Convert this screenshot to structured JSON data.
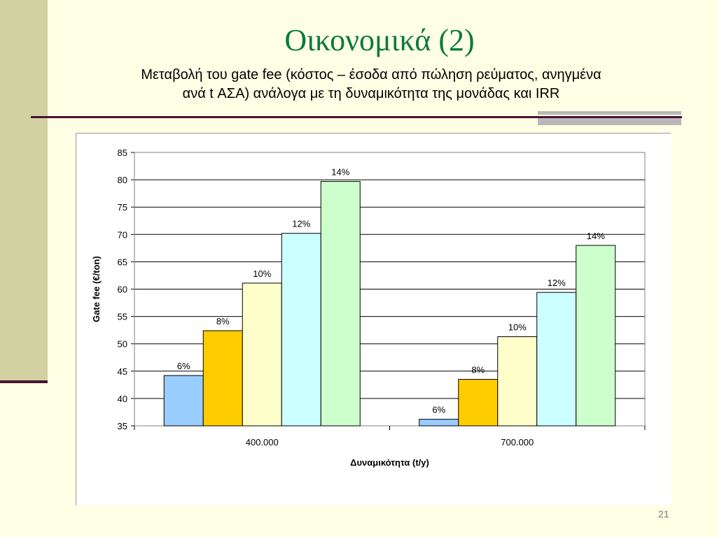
{
  "slide": {
    "title": "Οικονομικά (2)",
    "subtitle_line1": "Μεταβολή του gate fee (κόστος – έσοδα από πώληση ρεύματος, ανηγμένα",
    "subtitle_line2": "ανά t ΑΣΑ) ανάλογα με τη δυναμικότητα της μονάδας και IRR",
    "page_number": "21"
  },
  "colors": {
    "title": "#0B7A3B",
    "series": [
      "#99CCFF",
      "#FFCC00",
      "#FFFFCC",
      "#CCFFFF",
      "#CCFFCC"
    ]
  },
  "chart_data": {
    "type": "bar",
    "title": "",
    "xlabel": "Δυναμικότητα (t/y)",
    "ylabel": "Gate fee (€/ton)",
    "ylim": [
      35,
      85
    ],
    "yticks": [
      35,
      40,
      45,
      50,
      55,
      60,
      65,
      70,
      75,
      80,
      85
    ],
    "grid": true,
    "categories": [
      "400.000",
      "700.000"
    ],
    "series": [
      {
        "name": "6%",
        "values": [
          44.2,
          36.2
        ]
      },
      {
        "name": "8%",
        "values": [
          52.4,
          43.5
        ]
      },
      {
        "name": "10%",
        "values": [
          61.1,
          51.3
        ]
      },
      {
        "name": "12%",
        "values": [
          70.2,
          59.4
        ]
      },
      {
        "name": "14%",
        "values": [
          79.7,
          68.0
        ]
      }
    ],
    "data_labels": [
      [
        "6%",
        "8%",
        "10%",
        "12%",
        "14%"
      ],
      [
        "6%",
        "8%",
        "10%",
        "12%",
        "14%"
      ]
    ]
  }
}
